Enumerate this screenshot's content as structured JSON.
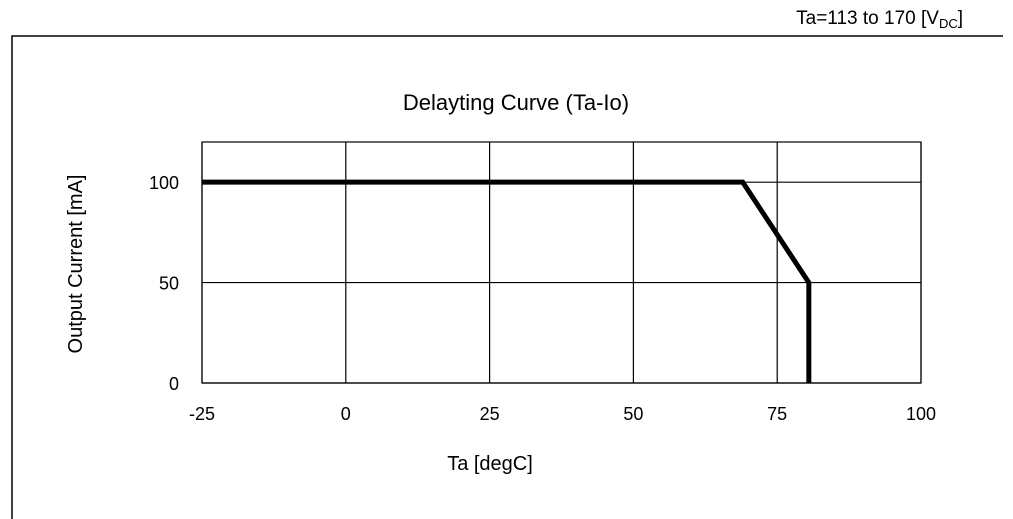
{
  "condition": {
    "prefix": "Ta=113 to 170 [V",
    "subscript": "DC",
    "suffix": "]"
  },
  "chart_data": {
    "type": "line",
    "title": "Delayting Curve (Ta-Io)",
    "xlabel": "Ta [degC]",
    "ylabel": "Output  Current [mA]",
    "xlim": [
      -25,
      100
    ],
    "ylim": [
      0,
      120
    ],
    "xticks": [
      -25,
      0,
      25,
      50,
      75,
      100
    ],
    "yticks": [
      0,
      50,
      100
    ],
    "grid": true,
    "series": [
      {
        "color": "#000000",
        "points": [
          {
            "x": -25,
            "y": 100
          },
          {
            "x": 69,
            "y": 100
          },
          {
            "x": 80.5,
            "y": 50
          },
          {
            "x": 80.5,
            "y": 0
          }
        ]
      }
    ]
  }
}
